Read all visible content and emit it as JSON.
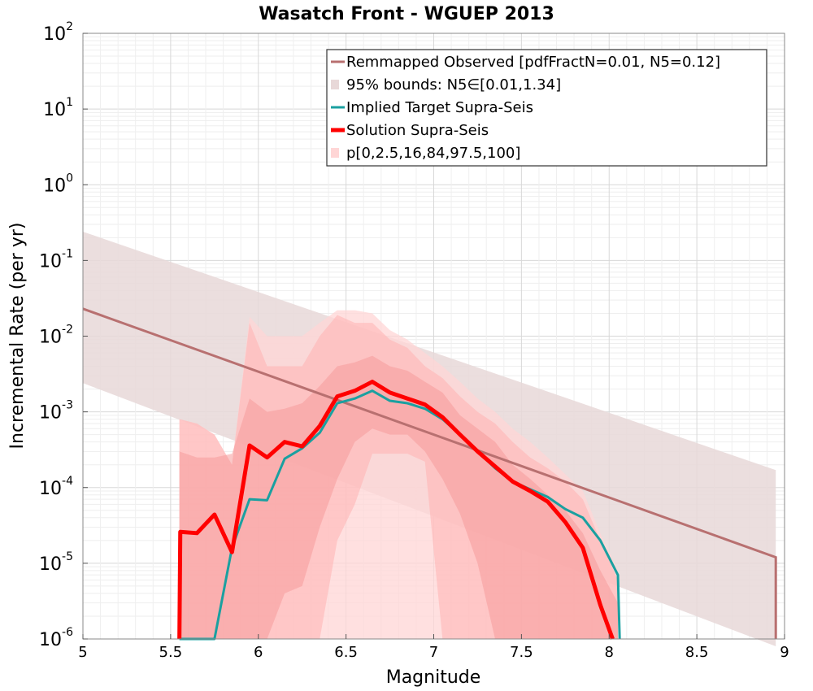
{
  "chart_data": {
    "type": "line",
    "title": "Wasatch Front - WGUEP 2013",
    "xlabel": "Magnitude",
    "ylabel": "Incremental Rate (per yr)",
    "xlim": [
      5,
      9
    ],
    "ylim": [
      1e-06,
      100
    ],
    "yscale": "log",
    "grid": true,
    "legend_position": "top-right",
    "x_ticks": [
      "5",
      "5.5",
      "6",
      "6.5",
      "7",
      "7.5",
      "8",
      "8.5",
      "9"
    ],
    "y_ticks": [
      {
        "base": "10",
        "exp": "-6"
      },
      {
        "base": "10",
        "exp": "-5"
      },
      {
        "base": "10",
        "exp": "-4"
      },
      {
        "base": "10",
        "exp": "-3"
      },
      {
        "base": "10",
        "exp": "-2"
      },
      {
        "base": "10",
        "exp": "-1"
      },
      {
        "base": "10",
        "exp": "0"
      },
      {
        "base": "10",
        "exp": "1"
      },
      {
        "base": "10",
        "exp": "2"
      }
    ],
    "colors": {
      "observed": "#b87070",
      "observed_band": "#e8d8d8",
      "implied": "#1aa0a0",
      "solution": "#ff0000",
      "band_outer": "#ffd6d6",
      "band_mid": "#ffb5b5",
      "band_inner": "#f59a9a"
    },
    "legend": [
      {
        "label": "Remmapped Observed [pdfFractN=0.01, N5=0.12]",
        "kind": "line",
        "color": "#b87070",
        "width": 3
      },
      {
        "label": "95% bounds: N5∈[0.01,1.34]",
        "kind": "patch",
        "color": "#e8d8d8"
      },
      {
        "label": "Implied Target Supra-Seis",
        "kind": "line",
        "color": "#1aa0a0",
        "width": 3
      },
      {
        "label": "Solution Supra-Seis",
        "kind": "line",
        "color": "#ff0000",
        "width": 5
      },
      {
        "label": "p[0,2.5,16,84,97.5,100]",
        "kind": "patch",
        "color": "#ffd6d6"
      }
    ],
    "observed": {
      "x": [
        5.0,
        8.95,
        8.95
      ],
      "y": [
        0.023,
        1.2e-05,
        1e-06
      ]
    },
    "observed_band": {
      "x": [
        5.0,
        8.95
      ],
      "upper": [
        0.24,
        0.00017
      ],
      "lower": [
        0.0024,
        8e-07
      ]
    },
    "series": [
      {
        "name": "Implied Target Supra-Seis",
        "color": "#1aa0a0",
        "x": [
          5.55,
          5.65,
          5.75,
          5.85,
          5.95,
          6.05,
          6.15,
          6.25,
          6.35,
          6.45,
          6.55,
          6.65,
          6.75,
          6.85,
          6.95,
          7.05,
          7.15,
          7.25,
          7.35,
          7.45,
          7.55,
          7.65,
          7.75,
          7.85,
          7.95,
          8.05,
          8.06
        ],
        "y": [
          1e-06,
          1e-06,
          1e-06,
          1.6e-05,
          7e-05,
          6.8e-05,
          0.00024,
          0.00033,
          0.00053,
          0.0013,
          0.0015,
          0.0019,
          0.0014,
          0.0013,
          0.0011,
          0.0008,
          0.0005,
          0.0003,
          0.00018,
          0.00012,
          9.5e-05,
          7.5e-05,
          5.2e-05,
          4e-05,
          2e-05,
          7e-06,
          1e-06
        ]
      },
      {
        "name": "Solution Supra-Seis",
        "color": "#ff0000",
        "x": [
          5.55,
          5.555,
          5.65,
          5.75,
          5.85,
          5.95,
          6.05,
          6.15,
          6.25,
          6.35,
          6.45,
          6.55,
          6.65,
          6.75,
          6.85,
          6.95,
          7.05,
          7.15,
          7.25,
          7.35,
          7.45,
          7.55,
          7.65,
          7.75,
          7.85,
          7.95,
          8.02
        ],
        "y": [
          1e-06,
          2.6e-05,
          2.5e-05,
          4.4e-05,
          1.4e-05,
          0.00036,
          0.00025,
          0.0004,
          0.00035,
          0.00065,
          0.0016,
          0.0019,
          0.0025,
          0.0018,
          0.0015,
          0.00125,
          0.00085,
          0.0005,
          0.0003,
          0.00019,
          0.00012,
          9e-05,
          6.5e-05,
          3.5e-05,
          1.6e-05,
          2.8e-06,
          1e-06
        ]
      }
    ],
    "percentile_bands": {
      "x": [
        5.55,
        5.65,
        5.75,
        5.85,
        5.95,
        6.05,
        6.15,
        6.25,
        6.35,
        6.45,
        6.55,
        6.65,
        6.75,
        6.85,
        6.95,
        7.05,
        7.15,
        7.25,
        7.35,
        7.45,
        7.55,
        7.65,
        7.75,
        7.85,
        7.95,
        8.05
      ],
      "p0": [
        1e-06,
        1e-06,
        1e-06,
        1e-06,
        1e-06,
        1e-06,
        1e-06,
        1e-06,
        1e-06,
        1e-06,
        1e-06,
        1e-06,
        1e-06,
        1e-06,
        1e-06,
        1e-06,
        1e-06,
        1e-06,
        1e-06,
        1e-06,
        1e-06,
        1e-06,
        1e-06,
        1e-06,
        1e-06,
        1e-06
      ],
      "p2_5": [
        1e-06,
        1e-06,
        1e-06,
        1e-06,
        1e-06,
        1e-06,
        1e-06,
        1e-06,
        1e-06,
        2e-05,
        6e-05,
        0.00028,
        0.00028,
        0.00028,
        0.00022,
        1e-06,
        1e-06,
        1e-06,
        1e-06,
        1e-06,
        1e-06,
        1e-06,
        1e-06,
        1e-06,
        1e-06,
        1e-06
      ],
      "p16": [
        1e-06,
        1e-06,
        1e-06,
        1e-06,
        1e-06,
        1e-06,
        4e-06,
        5e-06,
        3e-05,
        0.00013,
        0.0004,
        0.0006,
        0.0005,
        0.0005,
        0.0003,
        0.00013,
        4.5e-05,
        1e-05,
        1e-06,
        1e-06,
        1e-06,
        1e-06,
        1e-06,
        1e-06,
        1e-06,
        1e-06
      ],
      "p84": [
        0.0003,
        0.00025,
        0.00025,
        0.00028,
        0.0015,
        0.001,
        0.0011,
        0.0013,
        0.0022,
        0.004,
        0.0045,
        0.0055,
        0.004,
        0.0035,
        0.0025,
        0.0018,
        0.0009,
        0.0006,
        0.0004,
        0.0002,
        0.00013,
        8e-05,
        5e-05,
        2.5e-05,
        8e-06,
        3e-06
      ],
      "p97_5": [
        0.0008,
        0.0007,
        0.0005,
        0.0002,
        0.015,
        0.004,
        0.004,
        0.004,
        0.01,
        0.019,
        0.015,
        0.015,
        0.009,
        0.007,
        0.004,
        0.0028,
        0.0016,
        0.001,
        0.0007,
        0.0004,
        0.00025,
        0.00018,
        0.00012,
        7e-05,
        2e-05,
        6e-06
      ],
      "p100": [
        0.0008,
        0.0007,
        0.0005,
        0.0002,
        0.018,
        0.01,
        0.01,
        0.01,
        0.015,
        0.022,
        0.022,
        0.02,
        0.012,
        0.009,
        0.006,
        0.004,
        0.0025,
        0.0015,
        0.001,
        0.0006,
        0.0004,
        0.00025,
        0.00015,
        9e-05,
        2.5e-05,
        8e-06
      ]
    }
  }
}
